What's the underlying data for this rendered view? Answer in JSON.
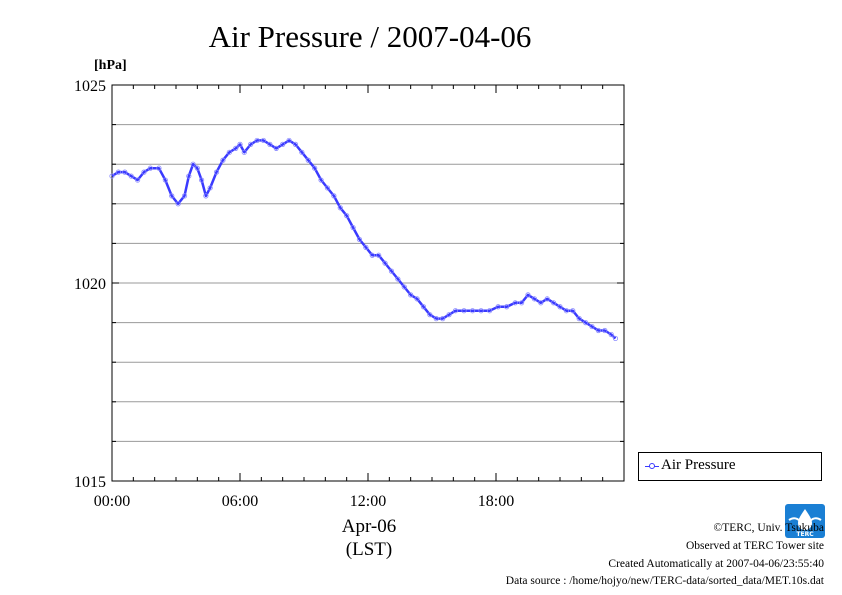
{
  "chart_data": {
    "type": "line",
    "title": "Air Pressure / 2007-04-06",
    "unit_label": "[hPa]",
    "xlabel_date": "Apr-06",
    "xlabel_tz": "(LST)",
    "ylim": [
      1015,
      1025
    ],
    "y_ticks": [
      "1015",
      "1020",
      "1025"
    ],
    "xlim_hours": [
      0,
      24
    ],
    "x_ticks": [
      "00:00",
      "06:00",
      "12:00",
      "18:00"
    ],
    "grid": "horizontal",
    "legend_position": "right",
    "series": [
      {
        "name": "Air Pressure",
        "color": "#3a3aff",
        "points": [
          [
            0.0,
            1022.7
          ],
          [
            0.3,
            1022.8
          ],
          [
            0.6,
            1022.8
          ],
          [
            0.9,
            1022.7
          ],
          [
            1.2,
            1022.6
          ],
          [
            1.5,
            1022.8
          ],
          [
            1.8,
            1022.9
          ],
          [
            2.2,
            1022.9
          ],
          [
            2.5,
            1022.6
          ],
          [
            2.8,
            1022.2
          ],
          [
            3.1,
            1022.0
          ],
          [
            3.4,
            1022.2
          ],
          [
            3.6,
            1022.7
          ],
          [
            3.8,
            1023.0
          ],
          [
            4.0,
            1022.9
          ],
          [
            4.2,
            1022.6
          ],
          [
            4.4,
            1022.2
          ],
          [
            4.6,
            1022.4
          ],
          [
            4.9,
            1022.8
          ],
          [
            5.2,
            1023.1
          ],
          [
            5.5,
            1023.3
          ],
          [
            5.8,
            1023.4
          ],
          [
            6.0,
            1023.5
          ],
          [
            6.2,
            1023.3
          ],
          [
            6.5,
            1023.5
          ],
          [
            6.8,
            1023.6
          ],
          [
            7.1,
            1023.6
          ],
          [
            7.4,
            1023.5
          ],
          [
            7.7,
            1023.4
          ],
          [
            8.0,
            1023.5
          ],
          [
            8.3,
            1023.6
          ],
          [
            8.6,
            1023.5
          ],
          [
            8.9,
            1023.3
          ],
          [
            9.2,
            1023.1
          ],
          [
            9.5,
            1022.9
          ],
          [
            9.8,
            1022.6
          ],
          [
            10.1,
            1022.4
          ],
          [
            10.4,
            1022.2
          ],
          [
            10.7,
            1021.9
          ],
          [
            11.0,
            1021.7
          ],
          [
            11.3,
            1021.4
          ],
          [
            11.6,
            1021.1
          ],
          [
            11.9,
            1020.9
          ],
          [
            12.2,
            1020.7
          ],
          [
            12.5,
            1020.7
          ],
          [
            12.8,
            1020.5
          ],
          [
            13.1,
            1020.3
          ],
          [
            13.4,
            1020.1
          ],
          [
            13.7,
            1019.9
          ],
          [
            14.0,
            1019.7
          ],
          [
            14.3,
            1019.6
          ],
          [
            14.6,
            1019.4
          ],
          [
            14.9,
            1019.2
          ],
          [
            15.2,
            1019.1
          ],
          [
            15.5,
            1019.1
          ],
          [
            15.8,
            1019.2
          ],
          [
            16.1,
            1019.3
          ],
          [
            16.5,
            1019.3
          ],
          [
            16.9,
            1019.3
          ],
          [
            17.3,
            1019.3
          ],
          [
            17.7,
            1019.3
          ],
          [
            18.1,
            1019.4
          ],
          [
            18.5,
            1019.4
          ],
          [
            18.9,
            1019.5
          ],
          [
            19.2,
            1019.5
          ],
          [
            19.5,
            1019.7
          ],
          [
            19.8,
            1019.6
          ],
          [
            20.1,
            1019.5
          ],
          [
            20.4,
            1019.6
          ],
          [
            20.7,
            1019.5
          ],
          [
            21.0,
            1019.4
          ],
          [
            21.3,
            1019.3
          ],
          [
            21.6,
            1019.3
          ],
          [
            21.9,
            1019.1
          ],
          [
            22.2,
            1019.0
          ],
          [
            22.5,
            1018.9
          ],
          [
            22.8,
            1018.8
          ],
          [
            23.1,
            1018.8
          ],
          [
            23.4,
            1018.7
          ],
          [
            23.6,
            1018.6
          ]
        ]
      }
    ]
  },
  "footer": {
    "copyright": "©TERC, Univ. Tsukuba",
    "observed": "Observed at TERC Tower site",
    "created": "Created Automatically at 2007-04-06/23:55:40",
    "source": "Data source : /home/hojyo/new/TERC-data/sorted_data/MET.10s.dat"
  },
  "logo": {
    "text": "TERC",
    "color": "#1a7fd4"
  }
}
